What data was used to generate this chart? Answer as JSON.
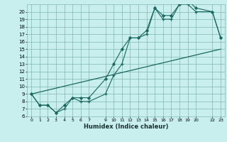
{
  "xlabel": "Humidex (Indice chaleur)",
  "bg_color": "#c8eeee",
  "grid_color": "#80b8b0",
  "line_color": "#1a6860",
  "xlim": [
    -0.5,
    23.5
  ],
  "ylim": [
    6,
    21
  ],
  "xticks": [
    0,
    1,
    2,
    3,
    4,
    5,
    6,
    7,
    9,
    10,
    11,
    12,
    13,
    14,
    15,
    16,
    17,
    18,
    19,
    20,
    22,
    23
  ],
  "yticks": [
    6,
    7,
    8,
    9,
    10,
    11,
    12,
    13,
    14,
    15,
    16,
    17,
    18,
    19,
    20
  ],
  "series1_x": [
    0,
    1,
    2,
    3,
    4,
    5,
    6,
    7,
    9,
    10,
    11,
    12,
    13,
    14,
    15,
    16,
    17,
    18,
    19,
    20,
    22,
    23
  ],
  "series1_y": [
    9,
    7.5,
    7.5,
    6.5,
    7,
    8.5,
    8,
    8,
    9,
    11.5,
    13,
    16.5,
    16.5,
    17,
    20.5,
    19,
    19,
    21,
    21,
    20,
    20,
    16.5
  ],
  "series2_x": [
    0,
    1,
    2,
    3,
    4,
    5,
    6,
    7,
    9,
    10,
    11,
    12,
    13,
    14,
    15,
    16,
    17,
    18,
    19,
    20,
    22,
    23
  ],
  "series2_y": [
    9,
    7.5,
    7.5,
    6.5,
    7.5,
    8.5,
    8.5,
    8.5,
    11,
    13,
    15,
    16.5,
    16.5,
    17.5,
    20.5,
    19.5,
    19.5,
    21,
    21.5,
    20.5,
    20,
    16.5
  ],
  "series3_x": [
    0,
    23
  ],
  "series3_y": [
    9,
    15
  ]
}
